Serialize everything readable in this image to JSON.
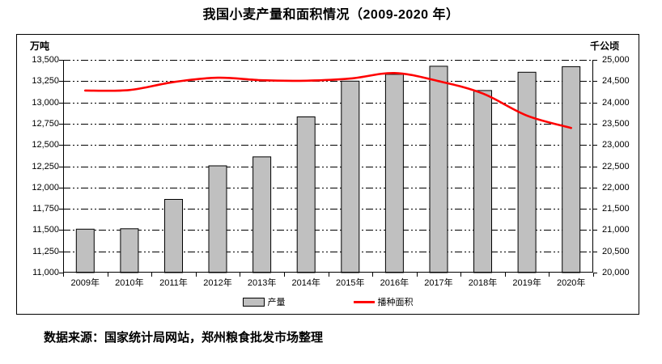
{
  "title": "我国小麦产量和面积情况（2009-2020 年）",
  "source_note": "数据来源：国家统计局网站，郑州粮食批发市场整理",
  "chart_data": {
    "type": "bar+line",
    "categories": [
      "2009年",
      "2010年",
      "2011年",
      "2012年",
      "2013年",
      "2014年",
      "2015年",
      "2016年",
      "2017年",
      "2018年",
      "2019年",
      "2020年"
    ],
    "series": [
      {
        "name": "产量",
        "type": "bar",
        "axis": "left",
        "color": "#c0c0c0",
        "border_color": "#000000",
        "values": [
          11510,
          11515,
          11860,
          12255,
          12360,
          12830,
          13250,
          13330,
          13425,
          13140,
          13355,
          13420
        ]
      },
      {
        "name": "播种面积",
        "type": "line",
        "axis": "right",
        "color": "#ff0000",
        "values": [
          24280,
          24290,
          24480,
          24580,
          24520,
          24510,
          24560,
          24690,
          24500,
          24210,
          23690,
          23400
        ]
      }
    ],
    "left_axis": {
      "unit": "万吨",
      "min": 11000,
      "max": 13500,
      "step": 250,
      "tick_labels": [
        "13,500",
        "13,250",
        "13,000",
        "12,750",
        "12,500",
        "12,250",
        "12,000",
        "11,750",
        "11,500",
        "11,250",
        "11,000"
      ]
    },
    "right_axis": {
      "unit": "千公顷",
      "min": 20000,
      "max": 25000,
      "step": 500,
      "tick_labels": [
        "25,000",
        "24,500",
        "24,000",
        "23,500",
        "23,000",
        "22,500",
        "22,000",
        "21,500",
        "21,000",
        "20,500",
        "20,000"
      ]
    },
    "grid": true,
    "legend_position": "bottom-inside"
  }
}
